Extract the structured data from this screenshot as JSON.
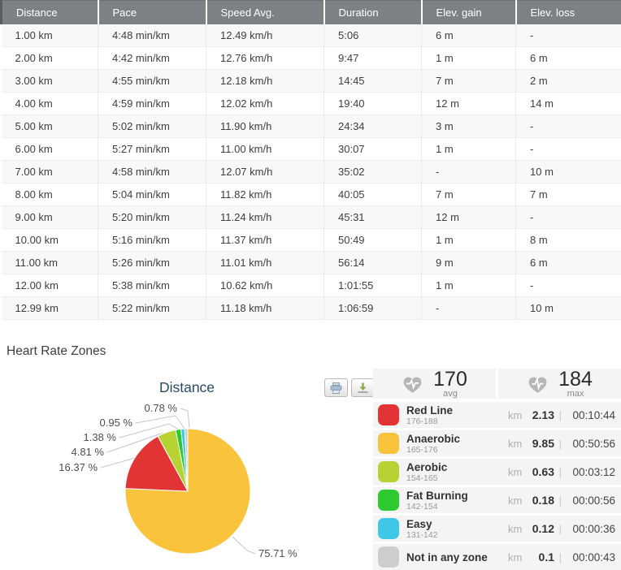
{
  "table": {
    "columns": [
      "Distance",
      "Pace",
      "Speed Avg.",
      "Duration",
      "Elev. gain",
      "Elev. loss"
    ],
    "rows": [
      [
        "1.00 km",
        "4:48 min/km",
        "12.49 km/h",
        "5:06",
        "6 m",
        "-"
      ],
      [
        "2.00 km",
        "4:42 min/km",
        "12.76 km/h",
        "9:47",
        "1 m",
        "6 m"
      ],
      [
        "3.00 km",
        "4:55 min/km",
        "12.18 km/h",
        "14:45",
        "7 m",
        "2 m"
      ],
      [
        "4.00 km",
        "4:59 min/km",
        "12.02 km/h",
        "19:40",
        "12 m",
        "14 m"
      ],
      [
        "5.00 km",
        "5:02 min/km",
        "11.90 km/h",
        "24:34",
        "3 m",
        "-"
      ],
      [
        "6.00 km",
        "5:27 min/km",
        "11.00 km/h",
        "30:07",
        "1 m",
        "-"
      ],
      [
        "7.00 km",
        "4:58 min/km",
        "12.07 km/h",
        "35:02",
        "-",
        "10 m"
      ],
      [
        "8.00 km",
        "5:04 min/km",
        "11.82 km/h",
        "40:05",
        "7 m",
        "7 m"
      ],
      [
        "9.00 km",
        "5:20 min/km",
        "11.24 km/h",
        "45:31",
        "12 m",
        "-"
      ],
      [
        "10.00 km",
        "5:16 min/km",
        "11.37 km/h",
        "50:49",
        "1 m",
        "8 m"
      ],
      [
        "11.00 km",
        "5:26 min/km",
        "11.01 km/h",
        "56:14",
        "9 m",
        "6 m"
      ],
      [
        "12.00 km",
        "5:38 min/km",
        "10.62 km/h",
        "1:01:55",
        "1 m",
        "-"
      ],
      [
        "12.99 km",
        "5:22 min/km",
        "11.18 km/h",
        "1:06:59",
        "-",
        "10 m"
      ]
    ]
  },
  "section": {
    "title": "Heart Rate Zones"
  },
  "chart_data": {
    "type": "pie",
    "title": "Distance",
    "slices": [
      {
        "label": "75.71 %",
        "value": 75.71,
        "name": "Anaerobic",
        "color": "#f9c33c"
      },
      {
        "label": "16.37 %",
        "value": 16.37,
        "name": "Red Line",
        "color": "#e23434"
      },
      {
        "label": "4.81 %",
        "value": 4.81,
        "name": "Aerobic",
        "color": "#b7d333"
      },
      {
        "label": "1.38 %",
        "value": 1.38,
        "name": "Fat Burning",
        "color": "#2ecb30"
      },
      {
        "label": "0.95 %",
        "value": 0.95,
        "name": "Easy",
        "color": "#3ec7e6"
      },
      {
        "label": "0.78 %",
        "value": 0.78,
        "name": "Not in any zone",
        "color": "#cdcdcd"
      }
    ]
  },
  "summary": {
    "avg": {
      "value": "170",
      "label": "avg",
      "icon": "heart-pulse-icon"
    },
    "max": {
      "value": "184",
      "label": "max",
      "icon": "heart-pulse-icon"
    }
  },
  "zones": [
    {
      "name": "Red Line",
      "range": "176-188",
      "color": "#e23434",
      "unit": "km",
      "value": "2.13",
      "time": "00:10:44"
    },
    {
      "name": "Anaerobic",
      "range": "165-176",
      "color": "#f9c33c",
      "unit": "km",
      "value": "9.85",
      "time": "00:50:56"
    },
    {
      "name": "Aerobic",
      "range": "154-165",
      "color": "#b7d333",
      "unit": "km",
      "value": "0.63",
      "time": "00:03:12"
    },
    {
      "name": "Fat Burning",
      "range": "142-154",
      "color": "#2ecb30",
      "unit": "km",
      "value": "0.18",
      "time": "00:00:56"
    },
    {
      "name": "Easy",
      "range": "131-142",
      "color": "#3ec7e6",
      "unit": "km",
      "value": "0.12",
      "time": "00:00:36"
    },
    {
      "name": "Not in any zone",
      "range": "",
      "color": "#cdcdcd",
      "unit": "km",
      "value": "0.1",
      "time": "00:00:43"
    }
  ],
  "toolbar": {
    "print": "print",
    "download": "download"
  }
}
